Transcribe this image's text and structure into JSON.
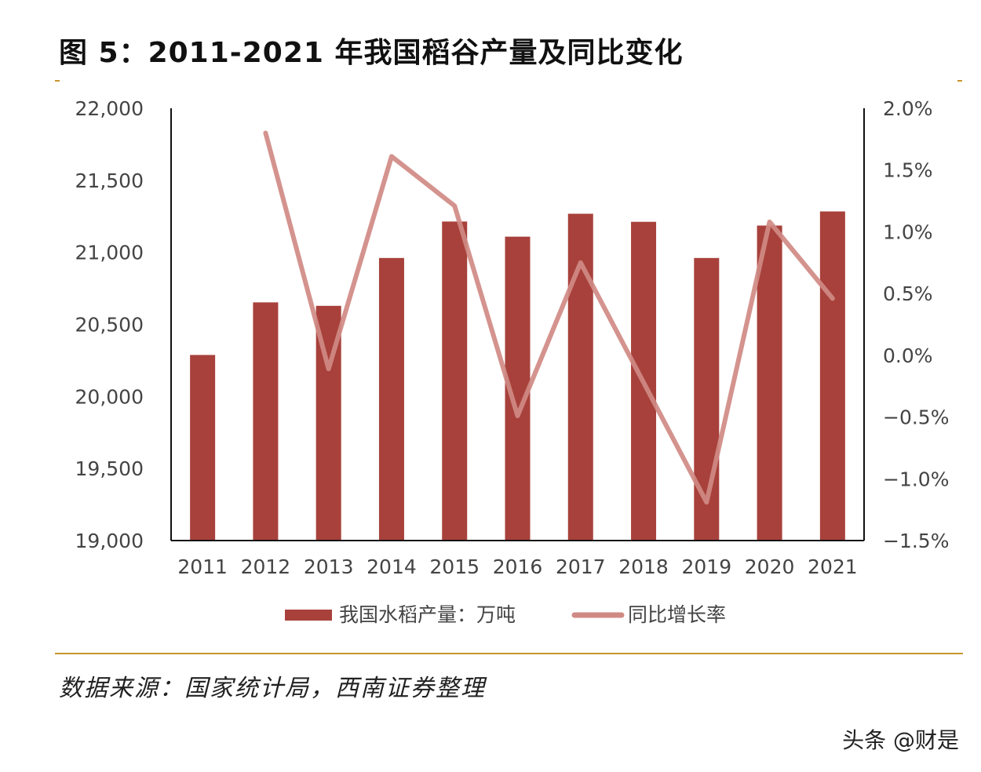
{
  "title": "图 5：2011-2021 年我国稻谷产量及同比变化",
  "source": "数据来源：国家统计局，西南证券整理",
  "watermark": "头条 @财是",
  "colors": {
    "bar": "#a8413b",
    "line": "#d08a84",
    "accent": "#c8962a"
  },
  "chart_data": {
    "type": "bar+line",
    "categories": [
      "2011",
      "2012",
      "2013",
      "2014",
      "2015",
      "2016",
      "2017",
      "2018",
      "2019",
      "2020",
      "2021"
    ],
    "series": [
      {
        "name": "我国水稻产量：万吨",
        "type": "bar",
        "axis": "left",
        "values": [
          20288,
          20653,
          20629,
          20961,
          21214,
          21109,
          21268,
          21212,
          20961,
          21186,
          21284
        ]
      },
      {
        "name": "同比增长率",
        "type": "line",
        "axis": "right",
        "values": [
          null,
          1.8,
          -0.11,
          1.61,
          1.21,
          -0.49,
          0.75,
          -0.22,
          -1.19,
          1.08,
          0.46
        ]
      }
    ],
    "y_left": {
      "min": 19000,
      "max": 22000,
      "ticks": [
        "19,000",
        "19,500",
        "20,000",
        "20,500",
        "21,000",
        "21,500",
        "22,000"
      ]
    },
    "y_right": {
      "min": -1.5,
      "max": 2.0,
      "ticks": [
        "-1.5%",
        "-1.0%",
        "-0.5%",
        "0.0%",
        "0.5%",
        "1.0%",
        "1.5%",
        "2.0%"
      ]
    },
    "grid": false,
    "legend": "bottom"
  }
}
